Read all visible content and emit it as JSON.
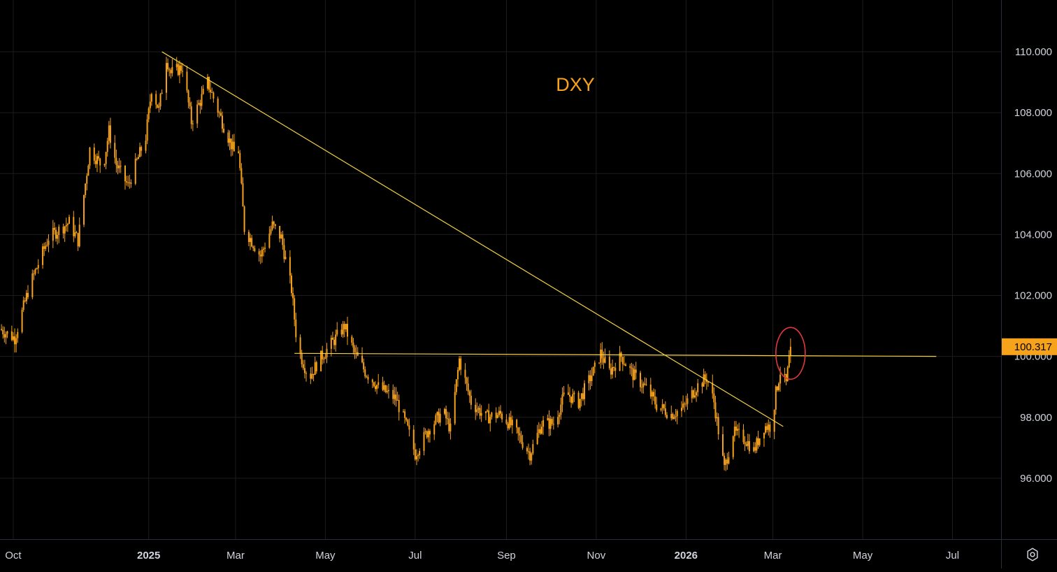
{
  "chart_data": {
    "type": "candlestick",
    "title": "DXY",
    "y_ticks": [
      96,
      98,
      100,
      102,
      104,
      106,
      108,
      110
    ],
    "y_tick_labels": [
      "96.000",
      "98.000",
      "100.000",
      "102.000",
      "104.000",
      "106.000",
      "108.000",
      "110.000"
    ],
    "ylim": [
      94.0,
      111.7
    ],
    "x_tick_labels": [
      {
        "label": "Oct",
        "date": "2024-10-01",
        "bold": false
      },
      {
        "label": "2025",
        "date": "2025-01-01",
        "bold": true
      },
      {
        "label": "Mar",
        "date": "2025-03-01",
        "bold": false
      },
      {
        "label": "May",
        "date": "2025-05-01",
        "bold": false
      },
      {
        "label": "Jul",
        "date": "2025-07-01",
        "bold": false
      },
      {
        "label": "Sep",
        "date": "2025-09-01",
        "bold": false
      },
      {
        "label": "Nov",
        "date": "2025-11-01",
        "bold": false
      },
      {
        "label": "2026",
        "date": "2026-01-01",
        "bold": true
      },
      {
        "label": "Mar",
        "date": "2026-03-01",
        "bold": false
      },
      {
        "label": "May",
        "date": "2026-05-01",
        "bold": false
      },
      {
        "label": "Jul",
        "date": "2026-07-01",
        "bold": false
      }
    ],
    "xlim": [
      "2024-09-22",
      "2026-08-03"
    ],
    "last_price": 100.317,
    "last_price_label": "100.317",
    "trendlines": [
      {
        "name": "descending-trendline",
        "from": {
          "date": "2025-01-10",
          "price": 110.0
        },
        "to": {
          "date": "2026-03-08",
          "price": 97.7
        },
        "color": "#f5d142"
      },
      {
        "name": "horizontal-resistance",
        "from": {
          "date": "2025-04-10",
          "price": 100.1
        },
        "to": {
          "date": "2026-06-20",
          "price": 100.0
        },
        "color": "#f5d142"
      }
    ],
    "highlight_ellipse": {
      "date": "2026-03-13",
      "price": 100.1,
      "color": "#e03a3a"
    },
    "grid": true,
    "colors": {
      "candle": "#f7a21b",
      "price_badge": "#f7a21b",
      "title": "#f7a21b",
      "axis_text": "#d1d4dc",
      "grid": "#1c1c1c"
    },
    "waypoints": [
      [
        "2024-09-22",
        100.9
      ],
      [
        "2024-10-02",
        100.6
      ],
      [
        "2024-10-12",
        102.3
      ],
      [
        "2024-10-25",
        103.9
      ],
      [
        "2024-11-08",
        104.4
      ],
      [
        "2024-11-14",
        103.8
      ],
      [
        "2024-11-22",
        106.8
      ],
      [
        "2024-12-01",
        106.2
      ],
      [
        "2024-12-05",
        107.4
      ],
      [
        "2024-12-10",
        106.3
      ],
      [
        "2024-12-18",
        105.6
      ],
      [
        "2024-12-30",
        107.2
      ],
      [
        "2025-01-03",
        108.8
      ],
      [
        "2025-01-08",
        108.1
      ],
      [
        "2025-01-13",
        109.8
      ],
      [
        "2025-01-16",
        109.3
      ],
      [
        "2025-01-24",
        109.5
      ],
      [
        "2025-01-30",
        107.7
      ],
      [
        "2025-02-06",
        108.5
      ],
      [
        "2025-02-10",
        109.0
      ],
      [
        "2025-02-20",
        107.7
      ],
      [
        "2025-02-28",
        106.7
      ],
      [
        "2025-03-02",
        107.4
      ],
      [
        "2025-03-07",
        104.2
      ],
      [
        "2025-03-18",
        103.3
      ],
      [
        "2025-03-26",
        104.3
      ],
      [
        "2025-04-01",
        103.9
      ],
      [
        "2025-04-08",
        102.2
      ],
      [
        "2025-04-12",
        100.3
      ],
      [
        "2025-04-20",
        99.3
      ],
      [
        "2025-04-27",
        99.9
      ],
      [
        "2025-05-08",
        100.6
      ],
      [
        "2025-05-14",
        101.0
      ],
      [
        "2025-05-20",
        100.2
      ],
      [
        "2025-05-28",
        99.5
      ],
      [
        "2025-06-06",
        99.0
      ],
      [
        "2025-06-18",
        98.6
      ],
      [
        "2025-06-26",
        97.6
      ],
      [
        "2025-07-01",
        96.8
      ],
      [
        "2025-07-10",
        97.6
      ],
      [
        "2025-07-20",
        98.2
      ],
      [
        "2025-07-25",
        97.6
      ],
      [
        "2025-07-31",
        99.9
      ],
      [
        "2025-08-08",
        98.5
      ],
      [
        "2025-08-18",
        98.0
      ],
      [
        "2025-08-28",
        98.1
      ],
      [
        "2025-09-05",
        97.7
      ],
      [
        "2025-09-17",
        96.8
      ],
      [
        "2025-09-25",
        97.8
      ],
      [
        "2025-10-03",
        97.8
      ],
      [
        "2025-10-11",
        98.8
      ],
      [
        "2025-10-20",
        98.5
      ],
      [
        "2025-10-31",
        99.6
      ],
      [
        "2025-11-04",
        100.1
      ],
      [
        "2025-11-10",
        99.5
      ],
      [
        "2025-11-18",
        100.0
      ],
      [
        "2025-11-26",
        99.4
      ],
      [
        "2025-12-06",
        98.9
      ],
      [
        "2025-12-12",
        98.4
      ],
      [
        "2025-12-22",
        98.1
      ],
      [
        "2025-12-30",
        98.3
      ],
      [
        "2026-01-08",
        99.0
      ],
      [
        "2026-01-15",
        99.3
      ],
      [
        "2026-01-20",
        98.5
      ],
      [
        "2026-01-27",
        96.3
      ],
      [
        "2026-02-02",
        97.5
      ],
      [
        "2026-02-10",
        97.3
      ],
      [
        "2026-02-16",
        96.9
      ],
      [
        "2026-02-23",
        97.7
      ],
      [
        "2026-02-28",
        97.7
      ],
      [
        "2026-03-03",
        98.8
      ],
      [
        "2026-03-06",
        99.5
      ],
      [
        "2026-03-10",
        99.1
      ],
      [
        "2026-03-13",
        100.3
      ]
    ]
  },
  "ui": {
    "settings_icon": "gear-icon"
  }
}
